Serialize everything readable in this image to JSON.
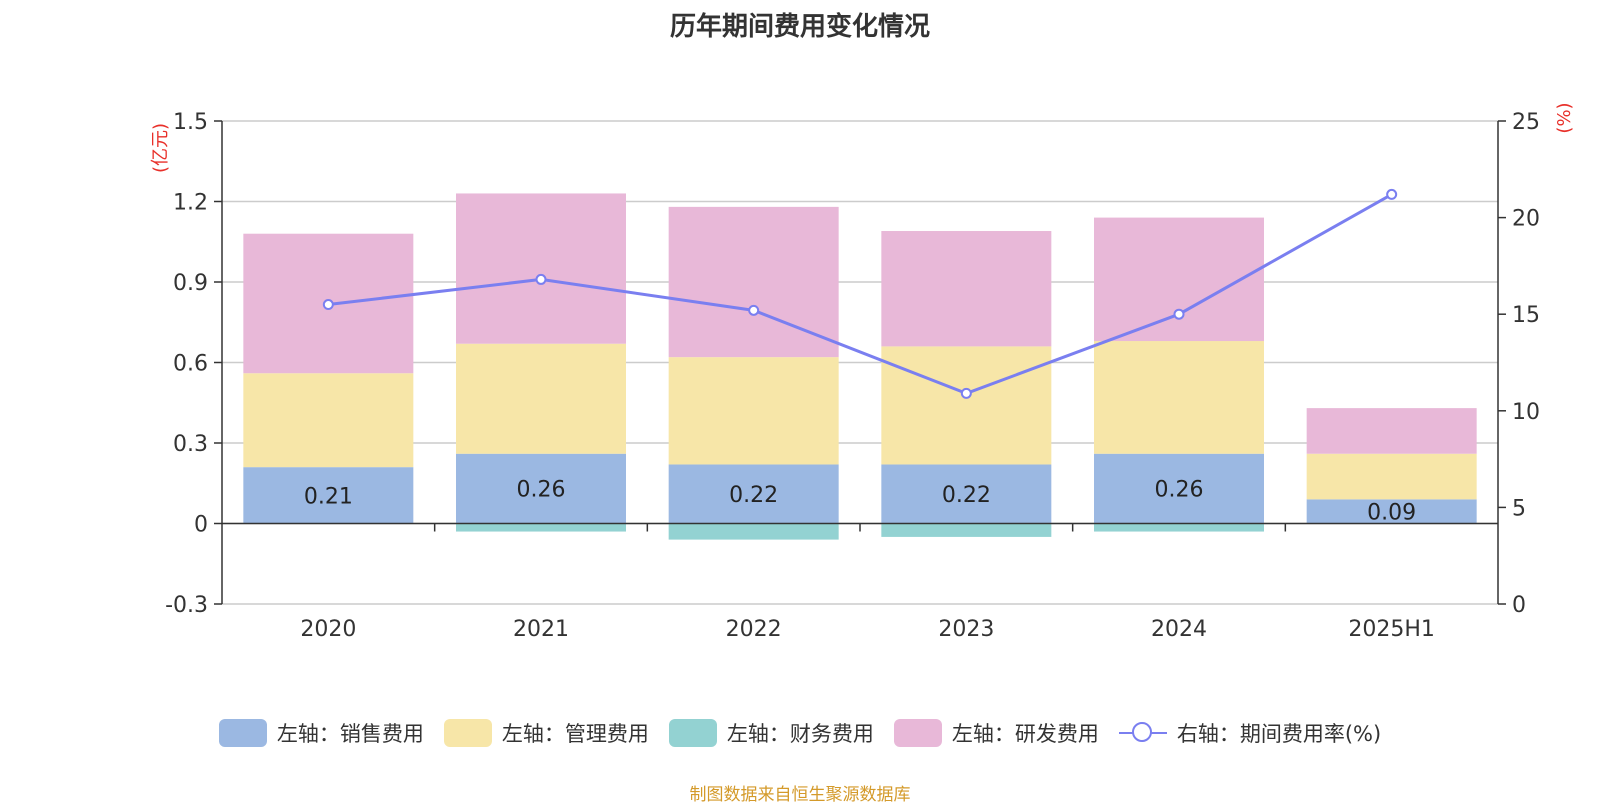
{
  "chart_data": {
    "type": "bar",
    "title": "历年期间费用变化情况",
    "categories": [
      "2020",
      "2021",
      "2022",
      "2023",
      "2024",
      "2025H1"
    ],
    "left_axis": {
      "unit_label": "(亿元)",
      "ylim": [
        -0.3,
        1.5
      ],
      "ticks": [
        "-0.3",
        "0",
        "0.3",
        "0.6",
        "0.9",
        "1.2",
        "1.5"
      ]
    },
    "right_axis": {
      "unit_label": "(%)",
      "ylim": [
        0,
        25
      ],
      "ticks": [
        "0",
        "5",
        "10",
        "15",
        "20",
        "25"
      ]
    },
    "series": [
      {
        "name": "左轴：销售费用",
        "axis": "left",
        "kind": "stacked-bar",
        "color": "#9bb8e2",
        "values": [
          0.21,
          0.26,
          0.22,
          0.22,
          0.26,
          0.09
        ],
        "show_labels": true
      },
      {
        "name": "左轴：管理费用",
        "axis": "left",
        "kind": "stacked-bar",
        "color": "#f7e6a8",
        "values": [
          0.35,
          0.41,
          0.4,
          0.44,
          0.42,
          0.17
        ]
      },
      {
        "name": "左轴：财务费用",
        "axis": "left",
        "kind": "stacked-bar",
        "color": "#93d2d2",
        "values": [
          0.0,
          -0.03,
          -0.06,
          -0.05,
          -0.03,
          0.0
        ]
      },
      {
        "name": "左轴：研发费用",
        "axis": "left",
        "kind": "stacked-bar",
        "color": "#e8b8d8",
        "values": [
          0.52,
          0.56,
          0.56,
          0.43,
          0.46,
          0.17
        ]
      },
      {
        "name": "右轴：期间费用率(%)",
        "axis": "right",
        "kind": "line",
        "color": "#7a7ff0",
        "values": [
          15.5,
          16.8,
          15.2,
          10.9,
          15.0,
          21.2
        ]
      }
    ],
    "grid": true,
    "legend_position": "bottom"
  },
  "source": "制图数据来自恒生聚源数据库"
}
